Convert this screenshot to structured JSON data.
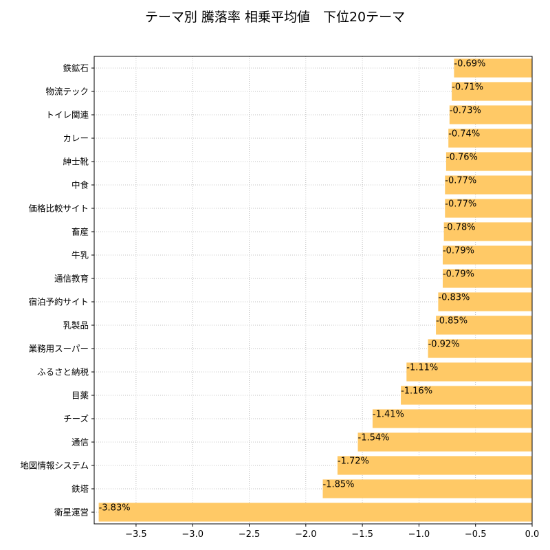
{
  "chart_data": {
    "type": "bar",
    "orientation": "horizontal",
    "title": "テーマ別 騰落率 相乗平均値　下位20テーマ",
    "xlabel": "",
    "ylabel": "",
    "categories": [
      "鉄鉱石",
      "物流テック",
      "トイレ関連",
      "カレー",
      "紳士靴",
      "中食",
      "価格比較サイト",
      "畜産",
      "牛乳",
      "通信教育",
      "宿泊予約サイト",
      "乳製品",
      "業務用スーパー",
      "ふるさと納税",
      "目薬",
      "チーズ",
      "通信",
      "地図情報システム",
      "鉄塔",
      "衛星運営"
    ],
    "values": [
      -0.69,
      -0.71,
      -0.73,
      -0.74,
      -0.76,
      -0.77,
      -0.77,
      -0.78,
      -0.79,
      -0.79,
      -0.83,
      -0.85,
      -0.92,
      -1.11,
      -1.16,
      -1.41,
      -1.54,
      -1.72,
      -1.85,
      -3.83
    ],
    "data_labels": [
      "-0.69%",
      "-0.71%",
      "-0.73%",
      "-0.74%",
      "-0.76%",
      "-0.77%",
      "-0.77%",
      "-0.78%",
      "-0.79%",
      "-0.79%",
      "-0.83%",
      "-0.85%",
      "-0.92%",
      "-1.11%",
      "-1.16%",
      "-1.41%",
      "-1.54%",
      "-1.72%",
      "-1.85%",
      "-3.83%"
    ],
    "xlim": [
      -3.87,
      0.0
    ],
    "xticks": [
      -3.5,
      -3.0,
      -2.5,
      -2.0,
      -1.5,
      -1.0,
      -0.5,
      0.0
    ],
    "xtick_labels": [
      "−3.5",
      "−3.0",
      "−2.5",
      "−2.0",
      "−1.5",
      "−1.0",
      "−0.5",
      "0.0"
    ],
    "grid": true,
    "grid_style": "dotted",
    "bar_color": "#ffc966",
    "grid_color": "#b0b0b0"
  }
}
